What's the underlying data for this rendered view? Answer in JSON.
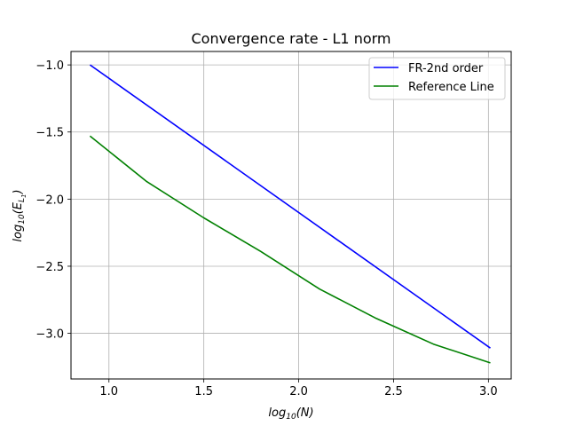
{
  "chart_data": {
    "type": "line",
    "title": "Convergence rate - L1 norm",
    "xlabel": {
      "base": "log",
      "sub": "10",
      "arg": "(N)"
    },
    "ylabel": {
      "base": "log",
      "sub": "10",
      "arg_open": "(E",
      "arg_sub": "L",
      "arg_subsub": "1",
      "arg_close": ")"
    },
    "xlim": [
      0.8,
      3.12
    ],
    "ylim": [
      -3.34,
      -0.9
    ],
    "xticks": [
      1.0,
      1.5,
      2.0,
      2.5,
      3.0
    ],
    "xtick_labels": [
      "1.0",
      "1.5",
      "2.0",
      "2.5",
      "3.0"
    ],
    "yticks": [
      -3.0,
      -2.5,
      -2.0,
      -1.5,
      -1.0
    ],
    "ytick_labels": [
      "−3.0",
      "−2.5",
      "−2.0",
      "−1.5",
      "−1.0"
    ],
    "grid": true,
    "legend_position": "top-right",
    "series": [
      {
        "name": "FR-2nd order",
        "color": "#0000ff",
        "x": [
          0.9,
          3.01
        ],
        "y": [
          -1.0,
          -3.11
        ]
      },
      {
        "name": "Reference Line",
        "color": "#008000",
        "x": [
          0.9,
          1.2,
          1.5,
          1.8,
          2.11,
          2.41,
          2.71,
          3.01
        ],
        "y": [
          -1.53,
          -1.87,
          -2.14,
          -2.39,
          -2.67,
          -2.89,
          -3.08,
          -3.22
        ]
      }
    ]
  }
}
